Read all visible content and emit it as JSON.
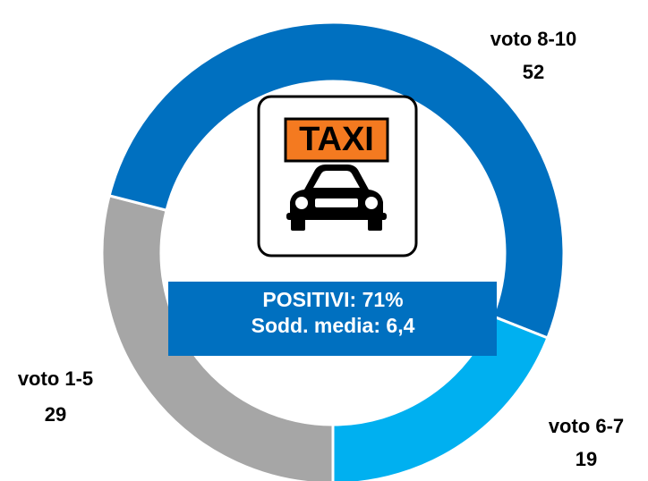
{
  "chart_data": {
    "type": "donut",
    "categories": [
      "voto 1-5",
      "voto 8-10",
      "voto 6-7"
    ],
    "values": [
      29,
      52,
      19
    ],
    "colors": [
      "#a6a6a6",
      "#0070c0",
      "#00b0f0"
    ],
    "center_text": [
      "POSITIVI: 71%",
      "Sodd. media: 6,4"
    ],
    "icon_text": "TAXI"
  }
}
